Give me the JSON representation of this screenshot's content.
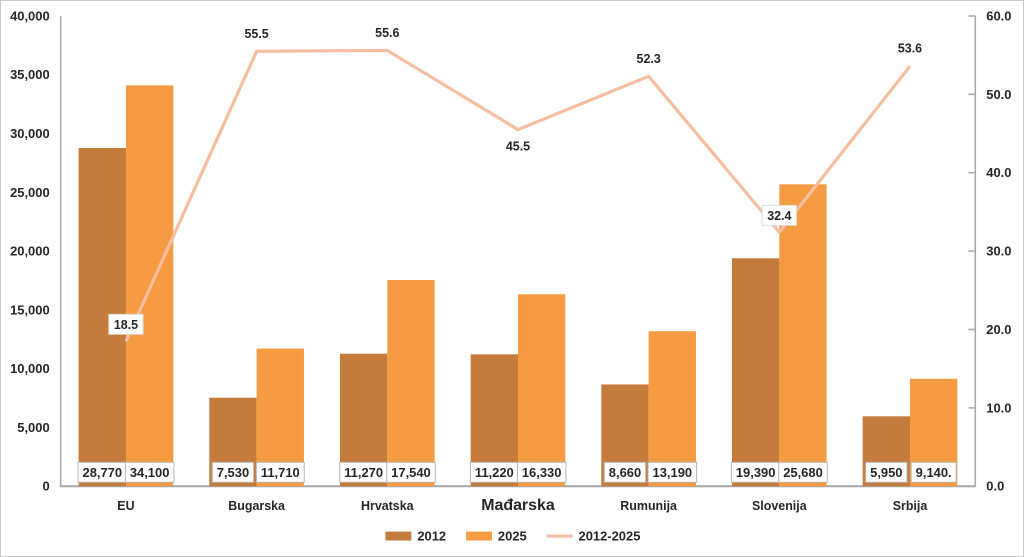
{
  "chart_data": {
    "type": "combo",
    "title": "",
    "categories": [
      "EU",
      "Bugarska",
      "Hrvatska",
      "Mađarska",
      "Rumunija",
      "Slovenija",
      "Srbija"
    ],
    "emphasized_category": "Mađarska",
    "series": [
      {
        "name": "2012",
        "type": "bar",
        "axis": "left",
        "color": "#c47b3c",
        "values": [
          28770,
          7530,
          11270,
          11220,
          8660,
          19390,
          5950
        ],
        "labels": [
          "28,770",
          "7,530",
          "11,270",
          "11,220",
          "8,660",
          "19,390",
          "5,950"
        ]
      },
      {
        "name": "2025",
        "type": "bar",
        "axis": "left",
        "color": "#f59c43",
        "values": [
          34100,
          11710,
          17540,
          16330,
          13190,
          25680,
          9140
        ],
        "labels": [
          "34,100",
          "11,710",
          "17,540",
          "16,330",
          "13,190",
          "25,680",
          "9,140."
        ]
      },
      {
        "name": "2012-2025",
        "type": "line",
        "axis": "right",
        "color": "#f6bea0",
        "values": [
          18.5,
          55.5,
          55.6,
          45.5,
          52.3,
          32.4,
          53.6
        ],
        "labels": [
          "18.5",
          "55.5",
          "55.6",
          "45.5",
          "52.3",
          "32.4",
          "53.6"
        ],
        "label_placement": [
          "boxed-above",
          "above",
          "above",
          "below",
          "above",
          "boxed-above",
          "above"
        ]
      }
    ],
    "left_axis": {
      "min": 0,
      "max": 40000,
      "step": 5000,
      "tick_labels": [
        "0",
        "5,000",
        "10,000",
        "15,000",
        "20,000",
        "25,000",
        "30,000",
        "35,000",
        "40,000"
      ]
    },
    "right_axis": {
      "min": 0,
      "max": 60,
      "step": 10,
      "tick_labels": [
        "0.0",
        "10.0",
        "20.0",
        "30.0",
        "40.0",
        "50.0",
        "60.0"
      ]
    },
    "legend": {
      "position": "bottom",
      "entries": [
        {
          "label": "2012",
          "swatch": "bar",
          "color": "#c47b3c"
        },
        {
          "label": "2025",
          "swatch": "bar",
          "color": "#f59c43"
        },
        {
          "label": "2012-2025",
          "swatch": "line",
          "color": "#f6bea0"
        }
      ]
    },
    "grid": false,
    "text_color": "#262626",
    "axis_color": "#a6a6a6",
    "label_box": {
      "fill": "#ffffff",
      "border": "#b5b5b5"
    }
  }
}
